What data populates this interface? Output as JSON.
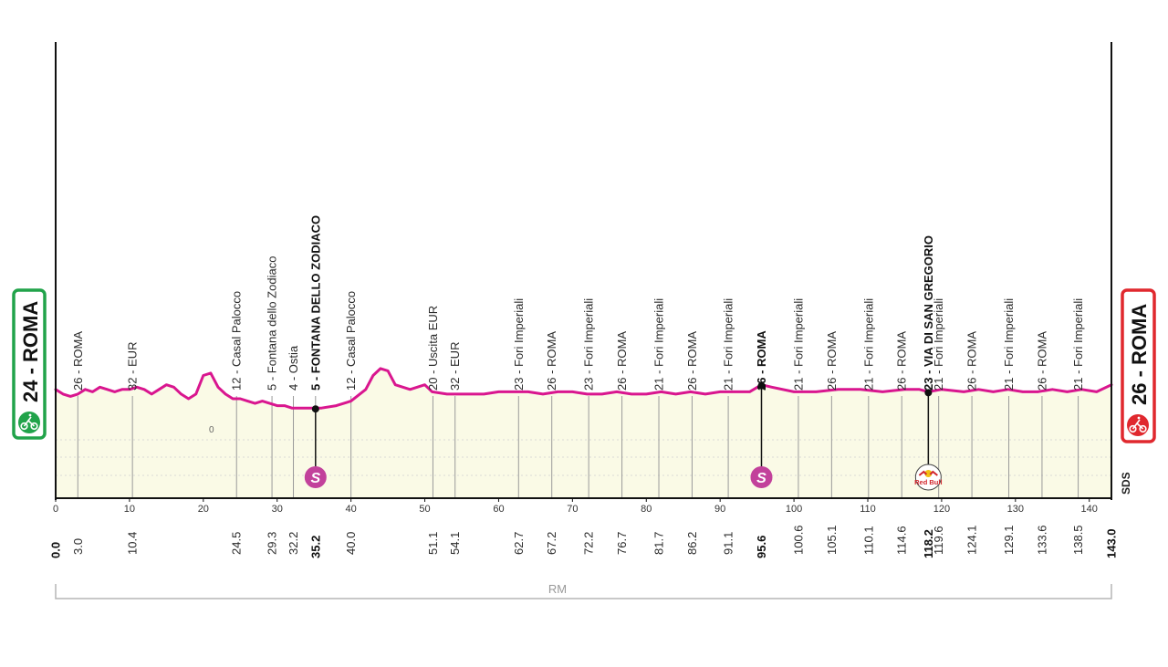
{
  "start_badge": {
    "label": "24 - ROMA",
    "color": "#21a34a",
    "icon": "cyclist-icon"
  },
  "finish_badge": {
    "label": "26 - ROMA",
    "color": "#e0282e",
    "icon": "finish-cyclist-icon"
  },
  "brand_mark": "SDS",
  "region_label": "RM",
  "altitude_tick": "0",
  "sprint_icon_letter": "S",
  "kom_sponsor": "Red Bull",
  "colors": {
    "route": "#d9168f",
    "area": "#fafae6",
    "sprint": "#c2419b",
    "axis": "#111111",
    "grid": "#cfcfcf"
  },
  "chart_data": {
    "type": "area",
    "title": "",
    "xlabel": "",
    "ylabel": "",
    "xlim": [
      0,
      143
    ],
    "ylim": [
      0,
      200
    ],
    "x_ticks": [
      0,
      10,
      20,
      30,
      40,
      50,
      60,
      70,
      80,
      90,
      100,
      110,
      120,
      130,
      140
    ],
    "profile": {
      "x": [
        0,
        1,
        2,
        3,
        4,
        5,
        6,
        7,
        8,
        9,
        10,
        11,
        12,
        13,
        14,
        15,
        16,
        17,
        18,
        19,
        20,
        21,
        22,
        23,
        24,
        25,
        26,
        27,
        28,
        29,
        30,
        31,
        32,
        33,
        34,
        35.2,
        36,
        38,
        40,
        42,
        43,
        44,
        45,
        46,
        48,
        50,
        51,
        53,
        55,
        58,
        60,
        62,
        64,
        66,
        68,
        70,
        72,
        74,
        76,
        78,
        80,
        82,
        84,
        86,
        88,
        90,
        92,
        94,
        95.6,
        97,
        100,
        103,
        106,
        109,
        112,
        115,
        117,
        118.2,
        120,
        123,
        125,
        127,
        129,
        131,
        133,
        135,
        137,
        139,
        141,
        143
      ],
      "y": [
        24,
        22,
        21,
        22,
        24,
        23,
        25,
        24,
        23,
        24,
        24,
        25,
        24,
        22,
        24,
        26,
        25,
        22,
        20,
        22,
        30,
        31,
        25,
        22,
        20,
        20,
        19,
        18,
        19,
        18,
        17,
        17,
        16,
        16,
        16,
        16,
        16,
        17,
        19,
        24,
        30,
        33,
        32,
        26,
        24,
        26,
        23,
        22,
        22,
        22,
        23,
        23,
        23,
        22,
        23,
        23,
        22,
        22,
        23,
        22,
        22,
        23,
        22,
        23,
        22,
        23,
        23,
        23,
        26,
        25,
        23,
        23,
        24,
        24,
        23,
        24,
        24,
        23,
        24,
        23,
        24,
        23,
        24,
        23,
        23,
        24,
        23,
        24,
        23,
        26
      ]
    },
    "markers": [
      {
        "km": "0.0",
        "label": "",
        "bold": true
      },
      {
        "km": "3.0",
        "label": "26 - ROMA"
      },
      {
        "km": "10.4",
        "label": "32 - EUR"
      },
      {
        "km": "24.5",
        "label": "12 - Casal Palocco"
      },
      {
        "km": "29.3",
        "label": "5 - Fontana dello Zodiaco"
      },
      {
        "km": "32.2",
        "label": "4 - Ostia"
      },
      {
        "km": "35.2",
        "label": "5 - FONTANA DELLO ZODIACO",
        "bold": true,
        "type": "sprint"
      },
      {
        "km": "40.0",
        "label": "12 - Casal Palocco"
      },
      {
        "km": "51.1",
        "label": "20 - Uscita EUR"
      },
      {
        "km": "54.1",
        "label": "32 - EUR"
      },
      {
        "km": "62.7",
        "label": "23 - Fori Imperiali"
      },
      {
        "km": "67.2",
        "label": "26 - ROMA"
      },
      {
        "km": "72.2",
        "label": "23 - Fori Imperiali"
      },
      {
        "km": "76.7",
        "label": "26 - ROMA"
      },
      {
        "km": "81.7",
        "label": "21 - Fori Imperiali"
      },
      {
        "km": "86.2",
        "label": "26 - ROMA"
      },
      {
        "km": "91.1",
        "label": "21 - Fori Imperiali"
      },
      {
        "km": "95.6",
        "label": "26 - ROMA",
        "bold": true,
        "type": "sprint"
      },
      {
        "km": "100.6",
        "label": "21 - Fori Imperiali"
      },
      {
        "km": "105.1",
        "label": "26 - ROMA"
      },
      {
        "km": "110.1",
        "label": "21 - Fori Imperiali"
      },
      {
        "km": "114.6",
        "label": "26 - ROMA"
      },
      {
        "km": "118.2",
        "label": "23 - VIA DI SAN GREGORIO",
        "bold": true,
        "type": "kom"
      },
      {
        "km": "119.6",
        "label": "21 - Fori Imperiali"
      },
      {
        "km": "124.1",
        "label": "26 - ROMA"
      },
      {
        "km": "129.1",
        "label": "21 - Fori Imperiali"
      },
      {
        "km": "133.6",
        "label": "26 - ROMA"
      },
      {
        "km": "138.5",
        "label": "21 - Fori Imperiali"
      },
      {
        "km": "143.0",
        "label": "",
        "bold": true
      }
    ]
  }
}
